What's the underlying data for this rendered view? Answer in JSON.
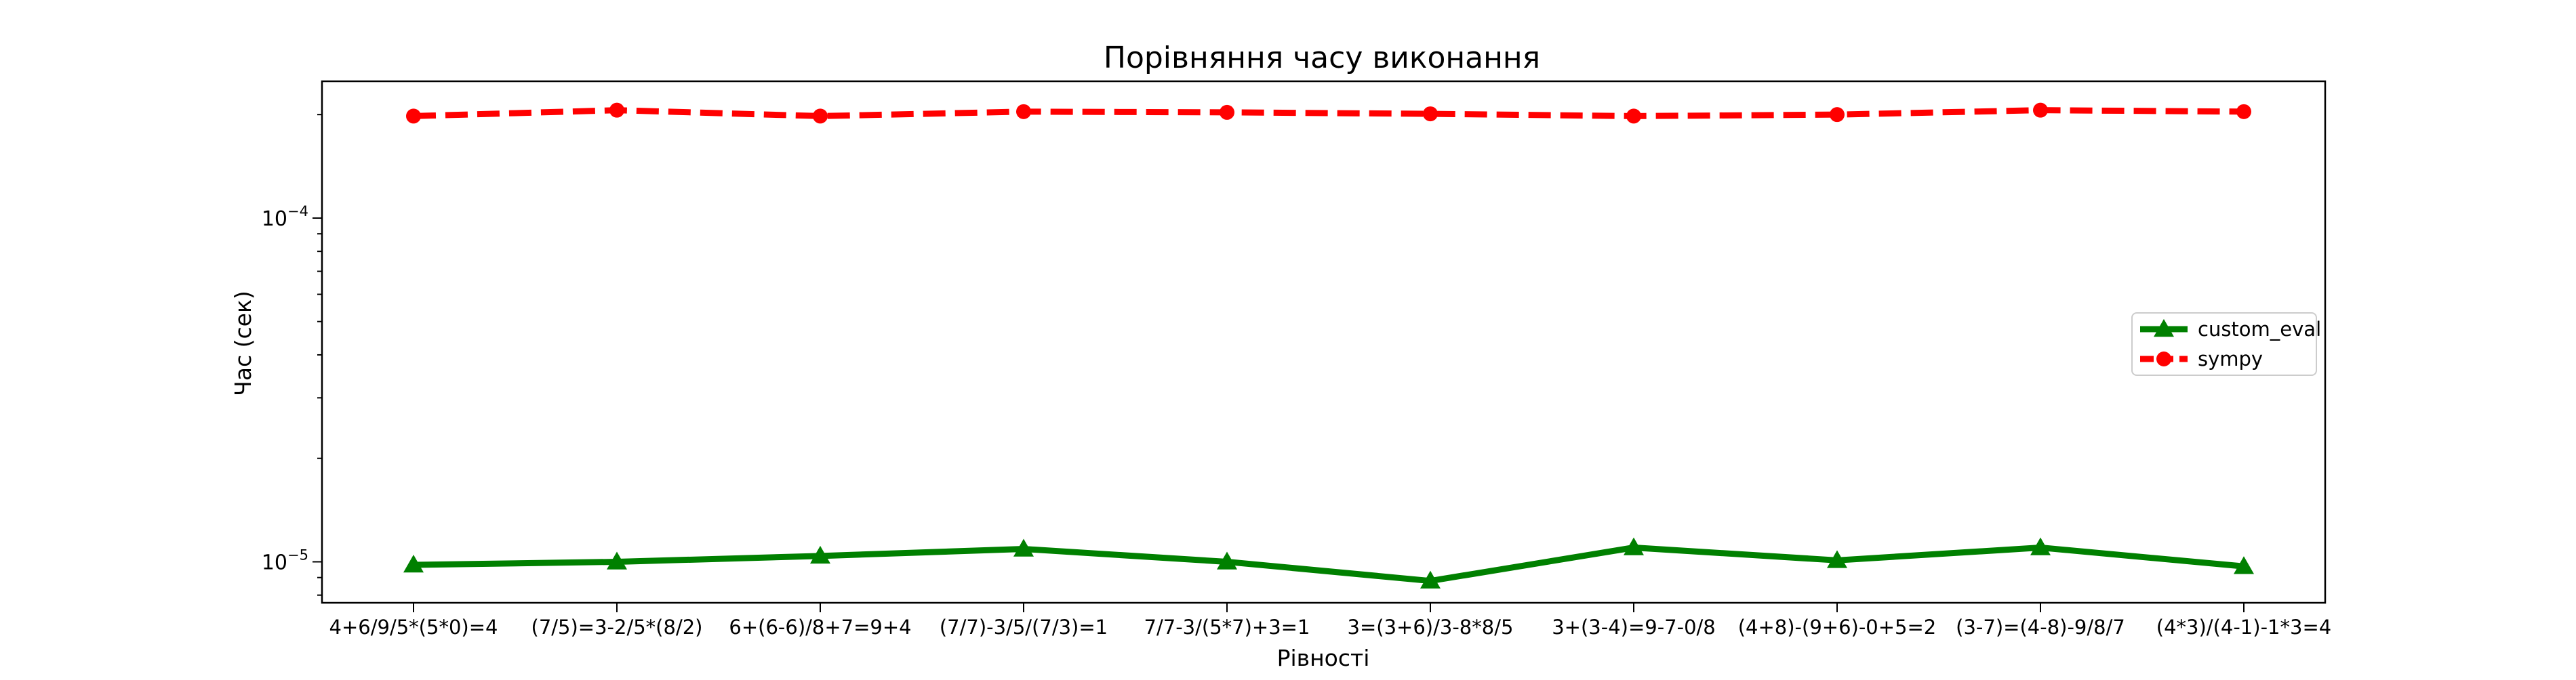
{
  "chart_data": {
    "type": "line",
    "title": "Порівняння часу виконання",
    "xlabel": "Рівності",
    "ylabel": "Час (сек)",
    "yscale": "log",
    "ylim": [
      7.6e-06,
      0.00025
    ],
    "grid": false,
    "legend_position": "center-right",
    "categories": [
      "4+6/9/5*(5*0)=4",
      "(7/5)=3-2/5*(8/2)",
      "6+(6-6)/8+7=9+4",
      "(7/7)-3/5/(7/3)=1",
      "7/7-3/(5*7)+3=1",
      "3=(3+6)/3-8*8/5",
      "3+(3-4)=9-7-0/8",
      "(4+8)-(9+6)-0+5=2",
      "(3-7)=(4-8)-9/8/7",
      "(4*3)/(4-1)-1*3=4"
    ],
    "y_ticks": [
      {
        "value": 1e-05,
        "base": "10",
        "exp": "−5"
      },
      {
        "value": 0.0001,
        "base": "10",
        "exp": "−4"
      }
    ],
    "series": [
      {
        "name": "custom_eval",
        "color": "#008000",
        "style": "solid",
        "marker": "triangle",
        "values": [
          9.8e-06,
          1e-05,
          1.04e-05,
          1.09e-05,
          1e-05,
          8.8e-06,
          1.1e-05,
          1.01e-05,
          1.1e-05,
          9.7e-06
        ]
      },
      {
        "name": "sympy",
        "color": "#ff0000",
        "style": "dashed",
        "marker": "circle",
        "values": [
          0.000198,
          0.000206,
          0.000198,
          0.000204,
          0.000203,
          0.000201,
          0.000198,
          0.0002,
          0.000206,
          0.000204
        ]
      }
    ]
  }
}
